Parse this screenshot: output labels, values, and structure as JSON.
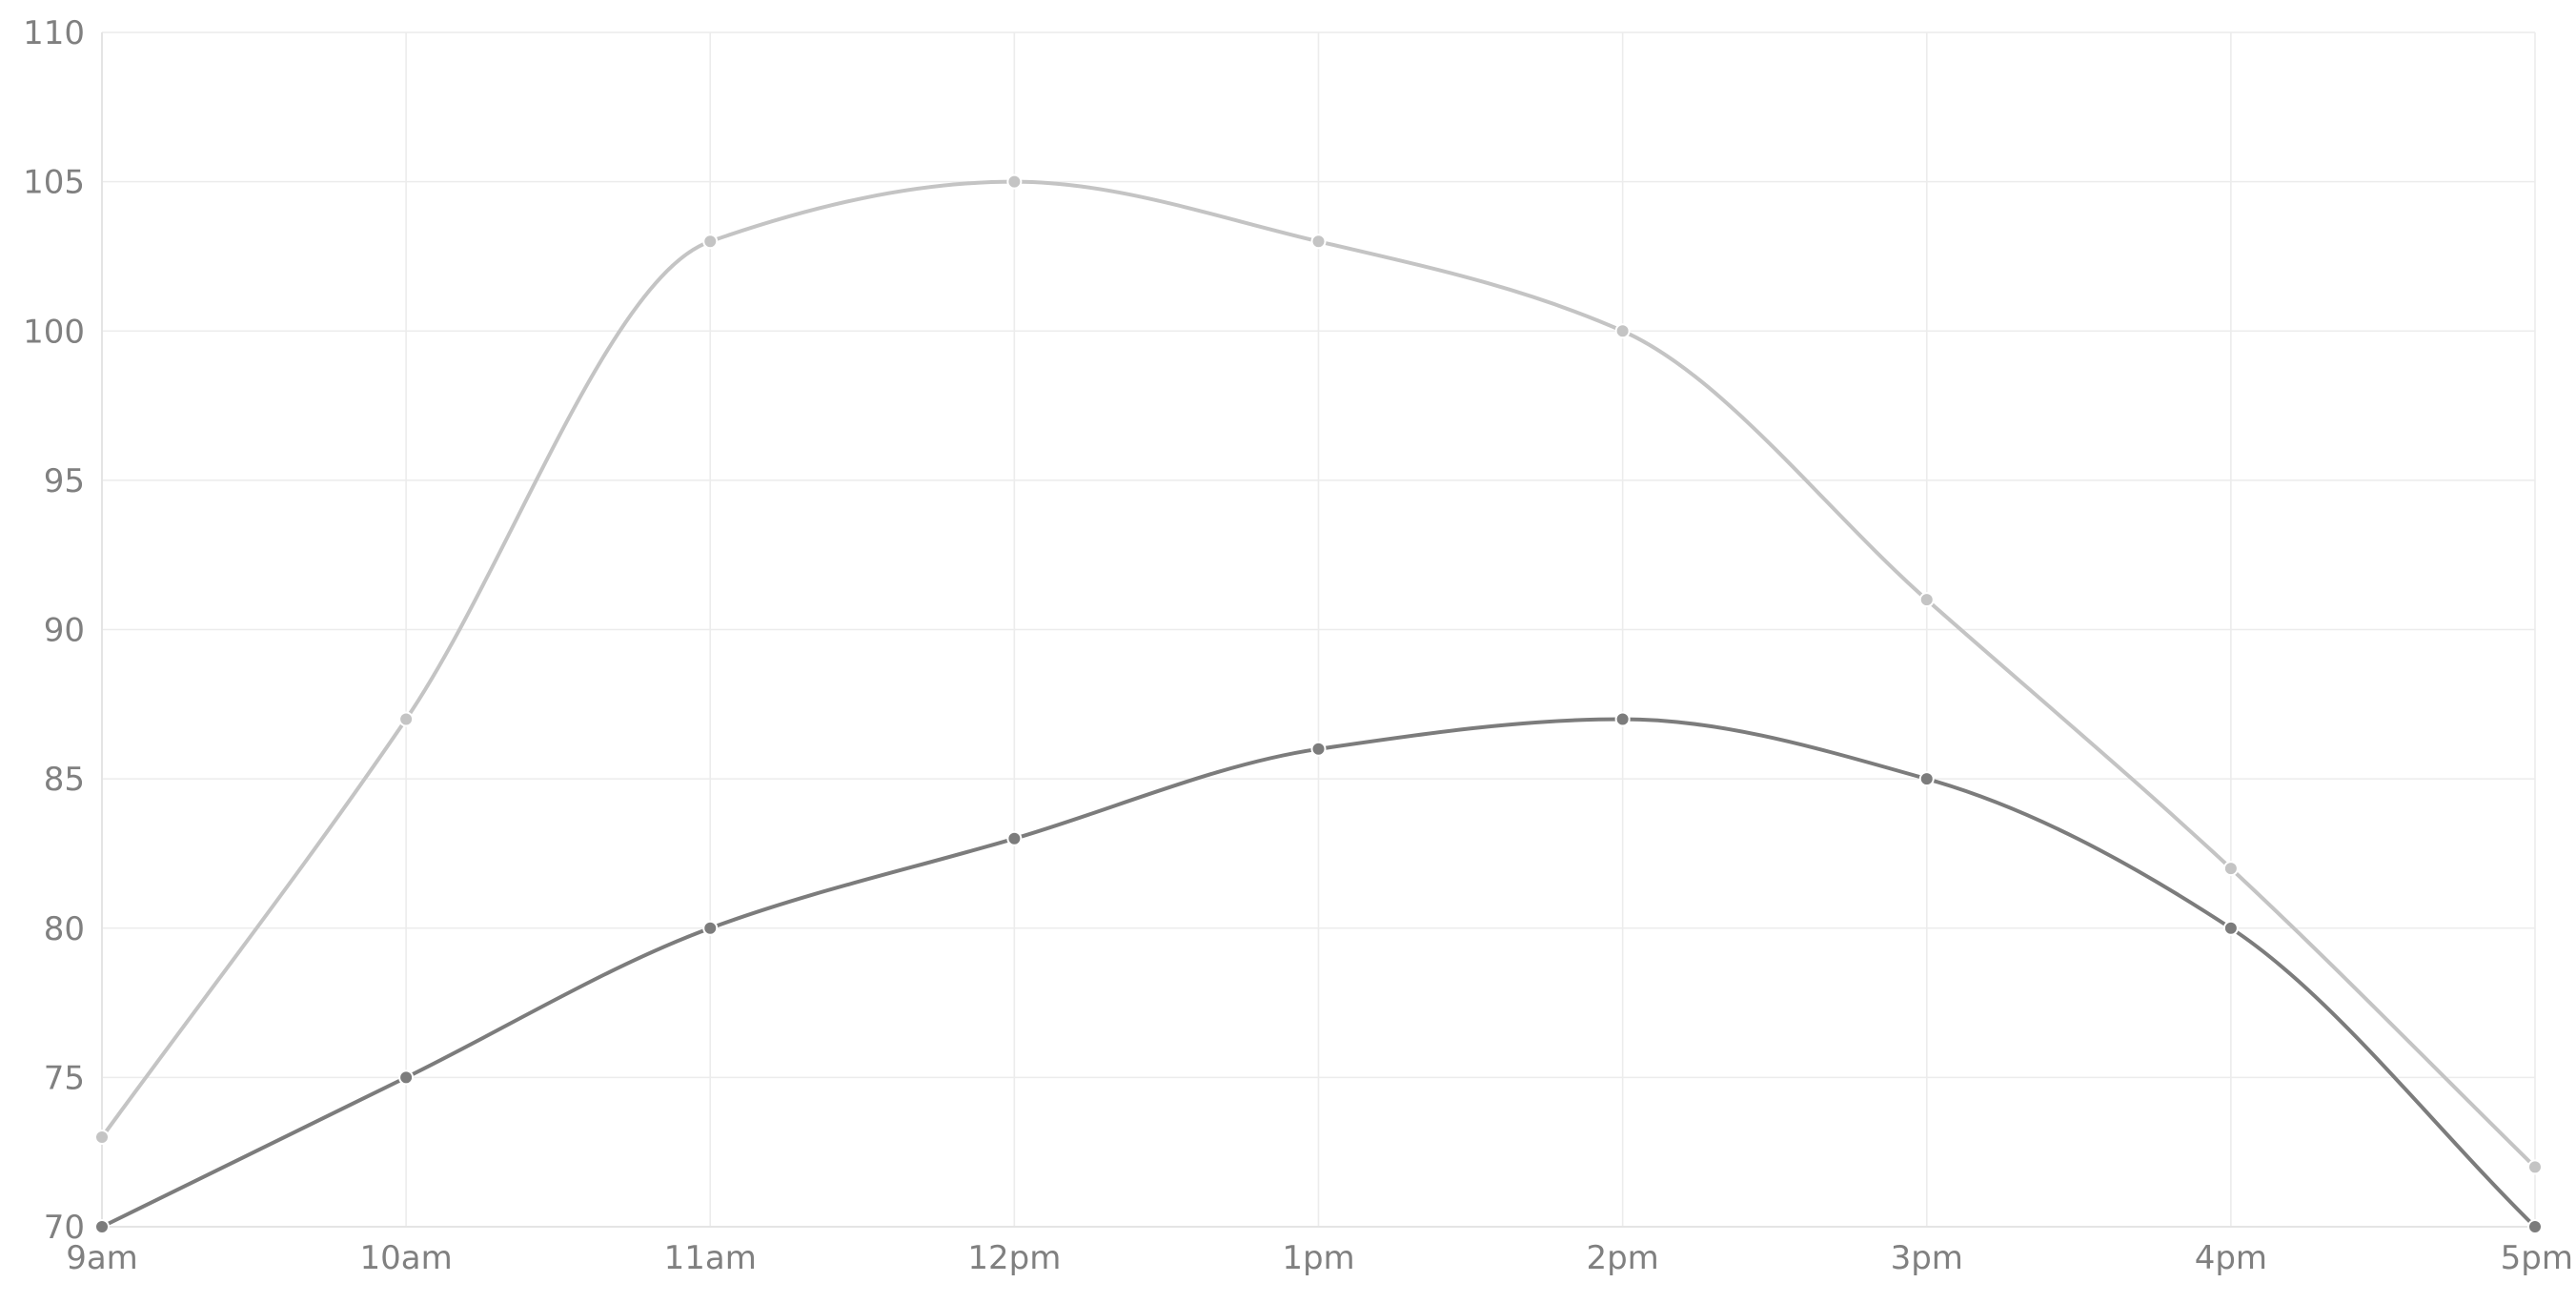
{
  "chart_data": {
    "type": "line",
    "title": "",
    "xlabel": "",
    "ylabel": "",
    "categories": [
      "9am",
      "10am",
      "11am",
      "12pm",
      "1pm",
      "2pm",
      "3pm",
      "4pm",
      "5pm"
    ],
    "y_ticks": [
      "70",
      "75",
      "80",
      "85",
      "90",
      "95",
      "100",
      "105",
      "110"
    ],
    "ylim": [
      70,
      110
    ],
    "grid": true,
    "legend": "none",
    "smooth": true,
    "series": [
      {
        "color": "#c4c4c4",
        "values": [
          73,
          87,
          103,
          105,
          103,
          100,
          91,
          82,
          72
        ]
      },
      {
        "color": "#7c7c7c",
        "values": [
          70,
          75,
          80,
          83,
          86,
          87,
          85,
          80,
          70
        ]
      }
    ]
  }
}
